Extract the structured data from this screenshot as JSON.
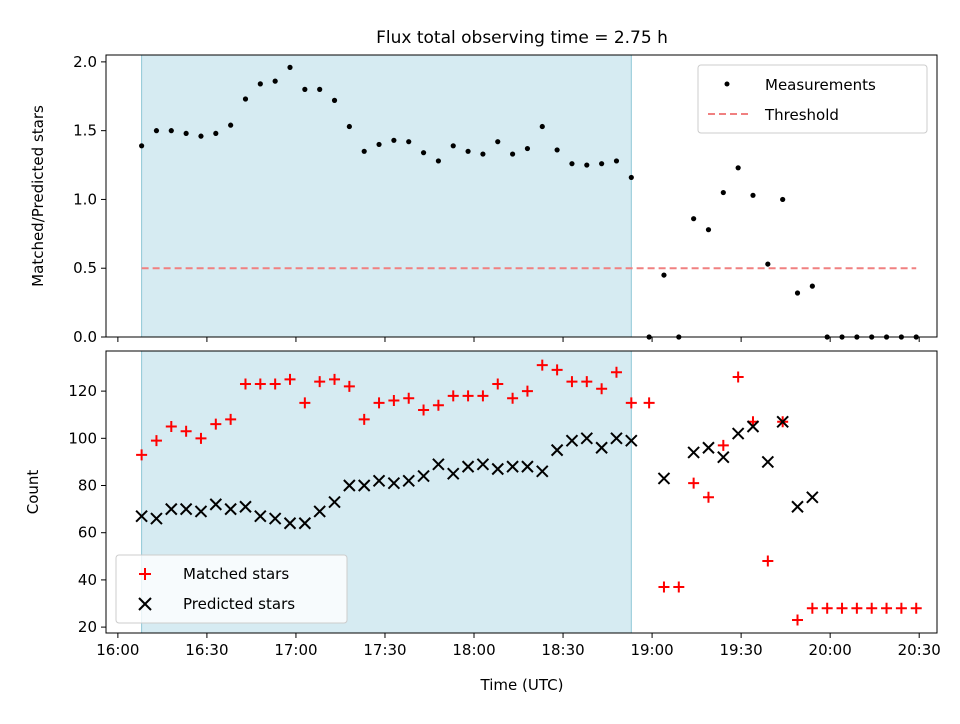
{
  "title": "Flux total observing time = 2.75 h",
  "chart_data": [
    {
      "type": "scatter",
      "ylabel": "Matched/Predicted stars",
      "ylim": [
        0,
        2.05
      ],
      "xlim": [
        "15:56",
        "20:36"
      ],
      "yticks": [
        "0.0",
        "0.5",
        "1.0",
        "1.5",
        "2.0"
      ],
      "shaded_interval": [
        "16:08",
        "18:53"
      ],
      "shade_color": "#add8e6",
      "legend_position": "upper right",
      "series": [
        {
          "name": "Measurements",
          "marker": "dot",
          "color": "#000000",
          "x": [
            "16:08",
            "16:13",
            "16:18",
            "16:23",
            "16:28",
            "16:33",
            "16:38",
            "16:43",
            "16:48",
            "16:53",
            "16:58",
            "17:03",
            "17:08",
            "17:13",
            "17:18",
            "17:23",
            "17:28",
            "17:33",
            "17:38",
            "17:43",
            "17:48",
            "17:53",
            "17:58",
            "18:03",
            "18:08",
            "18:13",
            "18:18",
            "18:23",
            "18:28",
            "18:33",
            "18:38",
            "18:43",
            "18:48",
            "18:53",
            "18:59",
            "19:04",
            "19:09",
            "19:14",
            "19:19",
            "19:24",
            "19:29",
            "19:34",
            "19:39",
            "19:44",
            "19:49",
            "19:54",
            "19:59",
            "20:04",
            "20:09",
            "20:14",
            "20:19",
            "20:24",
            "20:29"
          ],
          "y": [
            1.39,
            1.5,
            1.5,
            1.48,
            1.46,
            1.48,
            1.54,
            1.73,
            1.84,
            1.86,
            1.96,
            1.8,
            1.8,
            1.72,
            1.53,
            1.35,
            1.4,
            1.43,
            1.42,
            1.34,
            1.28,
            1.39,
            1.35,
            1.33,
            1.42,
            1.33,
            1.37,
            1.53,
            1.36,
            1.26,
            1.25,
            1.26,
            1.28,
            1.16,
            0.0,
            0.45,
            0.0,
            0.86,
            0.78,
            1.05,
            1.23,
            1.03,
            0.53,
            1.0,
            0.32,
            0.37,
            0.0,
            0.0,
            0.0,
            0.0,
            0.0,
            0.0,
            0.0
          ]
        },
        {
          "name": "Threshold",
          "marker": "dashed-line",
          "color": "#f08080",
          "x": [
            "16:08",
            "20:29"
          ],
          "y": [
            0.5,
            0.5
          ]
        }
      ]
    },
    {
      "type": "scatter",
      "xlabel": "Time (UTC)",
      "ylabel": "Count",
      "ylim": [
        17.5,
        137
      ],
      "xlim": [
        "15:56",
        "20:36"
      ],
      "yticks": [
        "20",
        "40",
        "60",
        "80",
        "100",
        "120"
      ],
      "xticks": [
        "16:00",
        "16:30",
        "17:00",
        "17:30",
        "18:00",
        "18:30",
        "19:00",
        "19:30",
        "20:00",
        "20:30"
      ],
      "shaded_interval": [
        "16:08",
        "18:53"
      ],
      "shade_color": "#add8e6",
      "legend_position": "lower left",
      "series": [
        {
          "name": "Matched stars",
          "marker": "plus",
          "color": "#ff0000",
          "x": [
            "16:08",
            "16:13",
            "16:18",
            "16:23",
            "16:28",
            "16:33",
            "16:38",
            "16:43",
            "16:48",
            "16:53",
            "16:58",
            "17:03",
            "17:08",
            "17:13",
            "17:18",
            "17:23",
            "17:28",
            "17:33",
            "17:38",
            "17:43",
            "17:48",
            "17:53",
            "17:58",
            "18:03",
            "18:08",
            "18:13",
            "18:18",
            "18:23",
            "18:28",
            "18:33",
            "18:38",
            "18:43",
            "18:48",
            "18:53",
            "18:59",
            "19:04",
            "19:09",
            "19:14",
            "19:19",
            "19:24",
            "19:29",
            "19:34",
            "19:39",
            "19:44",
            "19:49",
            "19:54",
            "19:59",
            "20:04",
            "20:09",
            "20:14",
            "20:19",
            "20:24",
            "20:29"
          ],
          "y": [
            93,
            99,
            105,
            103,
            100,
            106,
            108,
            123,
            123,
            123,
            125,
            115,
            124,
            125,
            122,
            108,
            115,
            116,
            117,
            112,
            114,
            118,
            118,
            118,
            123,
            117,
            120,
            131,
            129,
            124,
            124,
            121,
            128,
            115,
            115,
            37,
            37,
            81,
            75,
            97,
            126,
            107,
            48,
            107,
            23,
            28,
            28,
            28,
            28,
            28,
            28,
            28,
            28
          ]
        },
        {
          "name": "Predicted stars",
          "marker": "x",
          "color": "#000000",
          "x": [
            "16:08",
            "16:13",
            "16:18",
            "16:23",
            "16:28",
            "16:33",
            "16:38",
            "16:43",
            "16:48",
            "16:53",
            "16:58",
            "17:03",
            "17:08",
            "17:13",
            "17:18",
            "17:23",
            "17:28",
            "17:33",
            "17:38",
            "17:43",
            "17:48",
            "17:53",
            "17:58",
            "18:03",
            "18:08",
            "18:13",
            "18:18",
            "18:23",
            "18:28",
            "18:33",
            "18:38",
            "18:43",
            "18:48",
            "18:53",
            "19:04",
            "19:14",
            "19:19",
            "19:24",
            "19:29",
            "19:34",
            "19:39",
            "19:44",
            "19:49",
            "19:54"
          ],
          "y": [
            67,
            66,
            70,
            70,
            69,
            72,
            70,
            71,
            67,
            66,
            64,
            64,
            69,
            73,
            80,
            80,
            82,
            81,
            82,
            84,
            89,
            85,
            88,
            89,
            87,
            88,
            88,
            86,
            95,
            99,
            100,
            96,
            100,
            99,
            83,
            94,
            96,
            92,
            102,
            105,
            90,
            107,
            71,
            75
          ]
        }
      ]
    }
  ]
}
